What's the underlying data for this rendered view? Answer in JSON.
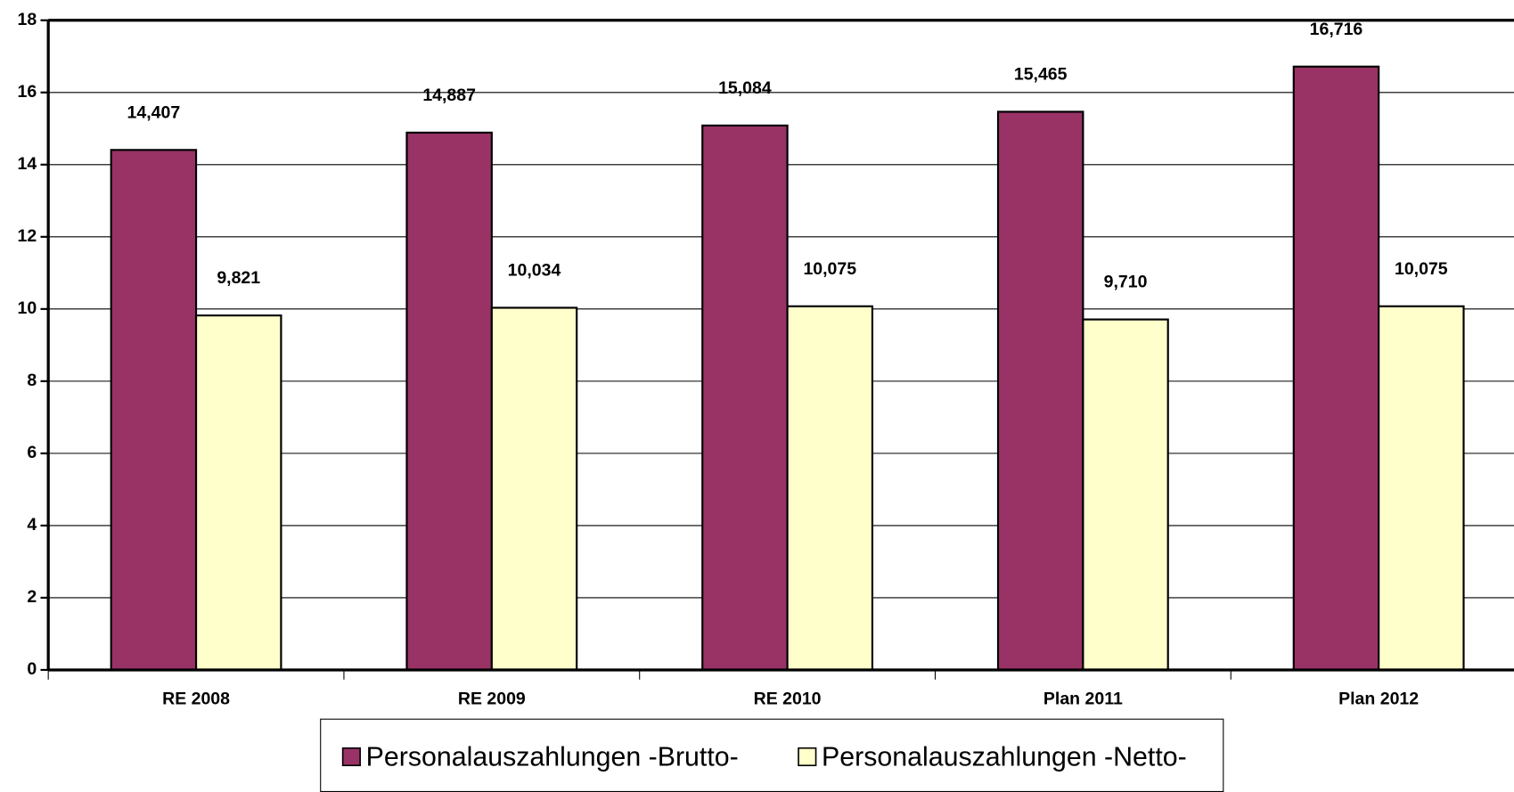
{
  "chart_data": {
    "type": "bar",
    "categories": [
      "RE 2008",
      "RE 2009",
      "RE 2010",
      "Plan 2011",
      "Plan 2012"
    ],
    "series": [
      {
        "name": "Personalauszahlungen -Brutto-",
        "color": "#993366",
        "values": [
          14.407,
          14.887,
          15.084,
          15.465,
          16.716
        ],
        "value_labels": [
          "14,407",
          "14,887",
          "15,084",
          "15,465",
          "16,716"
        ]
      },
      {
        "name": "Personalauszahlungen -Netto-",
        "color": "#ffffcc",
        "values": [
          9.821,
          10.034,
          10.075,
          9.71,
          10.075
        ],
        "value_labels": [
          "9,821",
          "10,034",
          "10,075",
          "9,710",
          "10,075"
        ]
      }
    ],
    "ylim": [
      0,
      18
    ],
    "yticks": [
      0,
      2,
      4,
      6,
      8,
      10,
      12,
      14,
      16,
      18
    ],
    "grid": true,
    "legend": "bottom"
  }
}
